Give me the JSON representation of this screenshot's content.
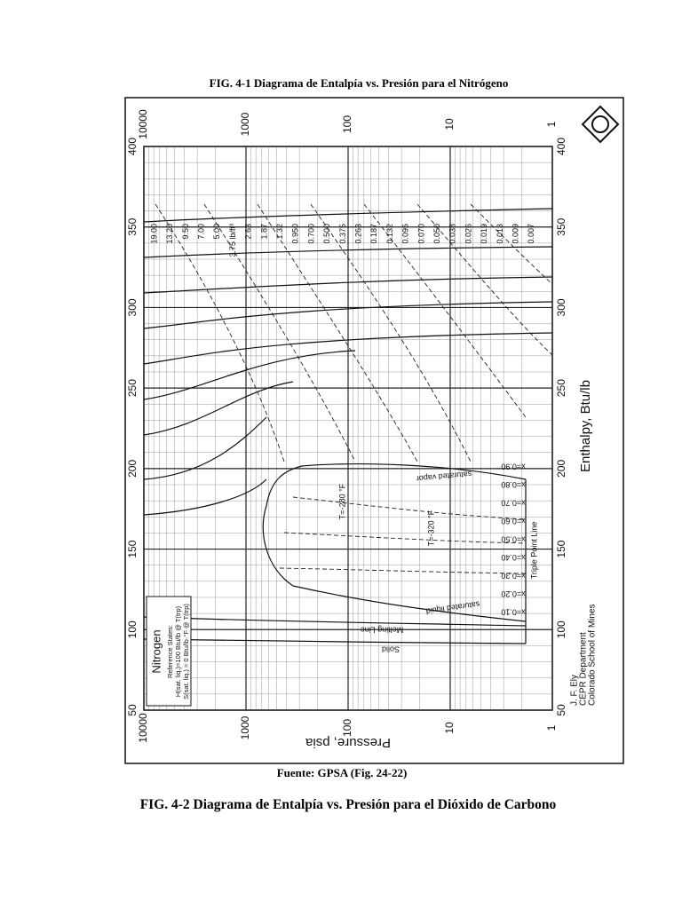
{
  "caption_top": "FIG. 4-1 Diagrama de Entalpía vs. Presión para el Nitrógeno",
  "figure": {
    "pressure_ticks": [
      10000,
      1000,
      100,
      10,
      1
    ],
    "enthalpy_ticks": [
      400,
      350,
      300,
      250,
      200,
      150,
      100,
      50
    ],
    "pressure_label": "Pressure, psia",
    "enthalpy_label": "Enthalpy, Btu/lb",
    "densities": [
      "19.00",
      "13.20",
      "9.50",
      "7.00",
      "5.00",
      "3.75 lb/ft³",
      "2.63",
      "1.87",
      "1.32",
      "0.950",
      "0.700",
      "0.500",
      "0.375",
      "0.263",
      "0.187",
      "0.132",
      "0.095",
      "0.070",
      "0.050",
      "0.038",
      "0.026",
      "0.019",
      "0.013",
      "0.009",
      "0.007"
    ],
    "qualities": [
      "x=0.90",
      "x=0.80",
      "x=0.70",
      "x=0.60",
      "x=0.50",
      "x=0.40",
      "x=0.30",
      "x=0.20",
      "x=0.10"
    ],
    "curve_labels": {
      "saturated_vapor": "saturated vapor",
      "saturated_liquid": "saturated liquid",
      "melting_line": "Melting Line",
      "solid": "Solid",
      "triple_point": "Triple Point Line",
      "t280": "T=-280 °F",
      "t320": "T=-320 °F"
    },
    "legend": {
      "title": "Nitrogen",
      "line1": "Reference States:",
      "line2": "H(sat. liq.)=100 Btu/lb @ T(trp)",
      "line3": "S(sat. liq.) = 0 Btu/lb·°F @ T(trp)"
    },
    "credit": [
      "J. F. Ely",
      "CEPR Department",
      "Colorado School of Mines"
    ]
  },
  "source": "Fuente: GPSA (Fig. 24-22)",
  "caption_bottom": "FIG. 4-2 Diagrama de Entalpía vs. Presión para el Dióxido de Carbono"
}
